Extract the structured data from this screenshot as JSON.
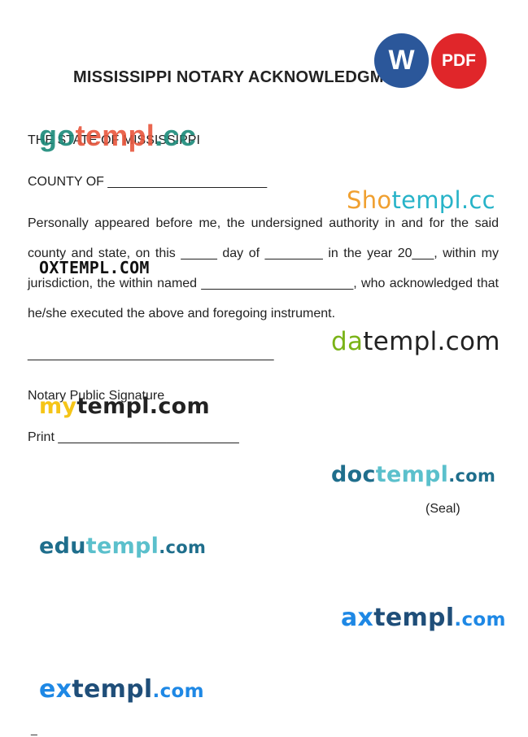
{
  "document": {
    "title": "MISSISSIPPI NOTARY ACKNOWLEDGMEN",
    "state_line": "THE STATE OF MISSISSIPPI",
    "county_line": "COUNTY OF ______________________",
    "paragraph": "Personally appeared before me, the undersigned authority in and for the said county and state, on this _____ day of ________ in the year 20___, within my jurisdiction, the within named _____________________, who acknowledged that he/she executed the above and foregoing instrument.",
    "signature_line": "__________________________________",
    "signature_label": "Notary Public Signature",
    "print_line": "Print  _________________________",
    "seal_label": "(Seal)",
    "footer_mark": "_"
  },
  "badges": {
    "word_label": "W",
    "word_color": "#2b579a",
    "pdf_label": "PDF",
    "pdf_color": "#e0262a"
  },
  "watermarks": {
    "gotempl": {
      "part1": "go",
      "part2": "templ",
      "part3": ".cc",
      "color1": "#1a8a7a",
      "color2": "#e8563c",
      "color3": "#1a8a7a"
    },
    "shotempl": {
      "part1": "Sho",
      "part2": "templ.cc",
      "color1": "#f0a030",
      "color2": "#27b3c8"
    },
    "oxtempl": {
      "text": "OXTEMPL.COM",
      "color": "#111111"
    },
    "datempl": {
      "part1": "da",
      "part2": "templ.com",
      "color1": "#7ab317",
      "color2": "#222222"
    },
    "mytempl": {
      "part1": "my",
      "part2": "templ.com",
      "color1": "#f5c518",
      "color2": "#222222"
    },
    "doctempl": {
      "part1": "doc",
      "part2": "templ",
      "part3": ".com",
      "color1": "#1f6e8c",
      "color2": "#5bc0cc",
      "color3": "#1f6e8c"
    },
    "edutempl": {
      "part1": "edu",
      "part2": "templ",
      "part3": ".com",
      "color1": "#1f6e8c",
      "color2": "#5bc0cc",
      "color3": "#1f6e8c"
    },
    "axtempl": {
      "part1": "ax",
      "part2": "templ",
      "part3": ".com",
      "color1": "#1e88e5",
      "color2": "#1f4e79",
      "color3": "#1e88e5"
    },
    "extempl": {
      "part1": "ex",
      "part2": "templ",
      "part3": ".com",
      "color1": "#1e88e5",
      "color2": "#1f4e79",
      "color3": "#1e88e5"
    }
  }
}
